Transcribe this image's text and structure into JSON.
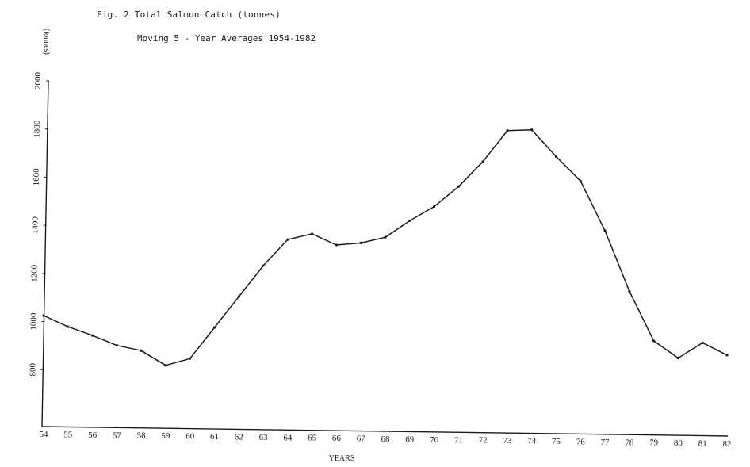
{
  "figure": {
    "title": "Fig. 2  Total Salmon Catch (tonnes)",
    "subtitle": "Moving 5 - Year Averages 1954-1982"
  },
  "chart_data": {
    "type": "line",
    "title": "Fig. 2  Total Salmon Catch (tonnes)",
    "subtitle": "Moving 5 - Year Averages 1954-1982",
    "xlabel": "YEARS",
    "ylabel": "(tonnes)",
    "ylim": [
      600,
      2000
    ],
    "xlim": [
      54,
      82
    ],
    "grid": false,
    "legend": "none",
    "x": [
      "54",
      "55",
      "56",
      "57",
      "58",
      "59",
      "60",
      "61",
      "62",
      "63",
      "64",
      "65",
      "66",
      "67",
      "68",
      "69",
      "70",
      "71",
      "72",
      "73",
      "74",
      "75",
      "76",
      "77",
      "78",
      "79",
      "80",
      "81",
      "82"
    ],
    "y_ticks": [
      {
        "value": 800,
        "label": "800"
      },
      {
        "value": 1000,
        "label": "1000"
      },
      {
        "value": 1200,
        "label": "1200"
      },
      {
        "value": 1400,
        "label": "1400"
      },
      {
        "value": 1600,
        "label": "1600"
      },
      {
        "value": 1800,
        "label": "1800"
      },
      {
        "value": 2000,
        "label": "2000"
      }
    ],
    "series": [
      {
        "color": "#1a1a1a",
        "values": [
          1025,
          980,
          945,
          905,
          885,
          825,
          855,
          985,
          1115,
          1245,
          1355,
          1380,
          1335,
          1345,
          1370,
          1440,
          1500,
          1585,
          1690,
          1820,
          1825,
          1715,
          1615,
          1410,
          1160,
          955,
          885,
          950,
          900
        ]
      }
    ]
  }
}
